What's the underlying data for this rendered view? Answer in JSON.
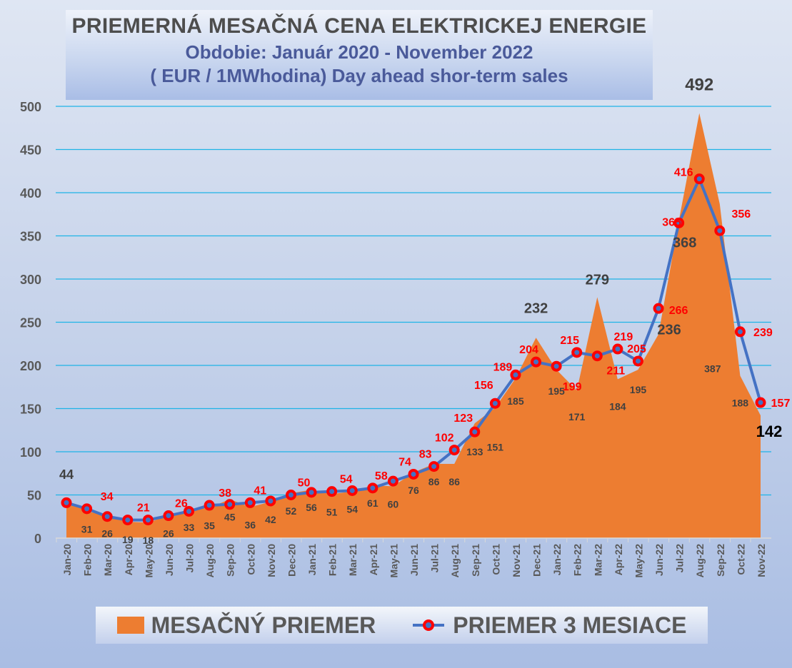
{
  "chart_data": {
    "type": "area+line",
    "title": "PRIEMERNÁ MESAČNÁ CENA ELEKTRICKEJ ENERGIE",
    "subtitle": "Obdobie: Január 2020 - November 2022",
    "subtitle2": "( EUR / 1MWhodina) Day ahead shor-term sales",
    "ylim": [
      0,
      500
    ],
    "yticks": [
      0,
      50,
      100,
      150,
      200,
      250,
      300,
      350,
      400,
      450,
      500
    ],
    "grid": true,
    "legend_position": "bottom",
    "categories": [
      "Jan-20",
      "Feb-20",
      "Mar-20",
      "Apr-20",
      "May-20",
      "Jun-20",
      "Jul-20",
      "Aug-20",
      "Sep-20",
      "Oct-20",
      "Nov-20",
      "Dec-20",
      "Jan-21",
      "Feb-21",
      "Mar-21",
      "Apr-21",
      "May-21",
      "Jun-21",
      "Jul-21",
      "Aug-21",
      "Sep-21",
      "Oct-21",
      "Nov-21",
      "Dec-21",
      "Jan-22",
      "Feb-22",
      "Mar-22",
      "Apr-22",
      "May-22",
      "Jun-22",
      "Jul-22",
      "Aug-22",
      "Sep-22",
      "Oct-22",
      "Nov-22"
    ],
    "series": [
      {
        "name": "MESAČNÝ PRIEMER",
        "type": "area",
        "color": "#ed7d31",
        "values": [
          44,
          31,
          26,
          19,
          18,
          26,
          33,
          35,
          45,
          36,
          42,
          52,
          56,
          51,
          54,
          61,
          60,
          76,
          86,
          86,
          133,
          151,
          185,
          232,
          195,
          171,
          279,
          184,
          195,
          236,
          368,
          492,
          387,
          188,
          142
        ]
      },
      {
        "name": "PRIEMER 3 MESIACE",
        "type": "line",
        "color": "#4472c4",
        "marker_color": "#ff0000",
        "values": [
          41,
          34,
          25,
          21,
          21,
          26,
          31,
          38,
          39,
          41,
          43,
          50,
          53,
          54,
          55,
          58,
          66,
          74,
          83,
          102,
          123,
          156,
          189,
          204,
          199,
          215,
          211,
          219,
          205,
          266,
          365,
          416,
          356,
          239,
          157
        ],
        "labels": [
          null,
          34,
          null,
          21,
          null,
          26,
          null,
          38,
          null,
          41,
          null,
          50,
          null,
          54,
          null,
          58,
          null,
          74,
          83,
          102,
          123,
          156,
          189,
          204,
          199,
          215,
          211,
          219,
          205,
          266,
          365,
          416,
          356,
          239,
          157
        ]
      }
    ]
  }
}
